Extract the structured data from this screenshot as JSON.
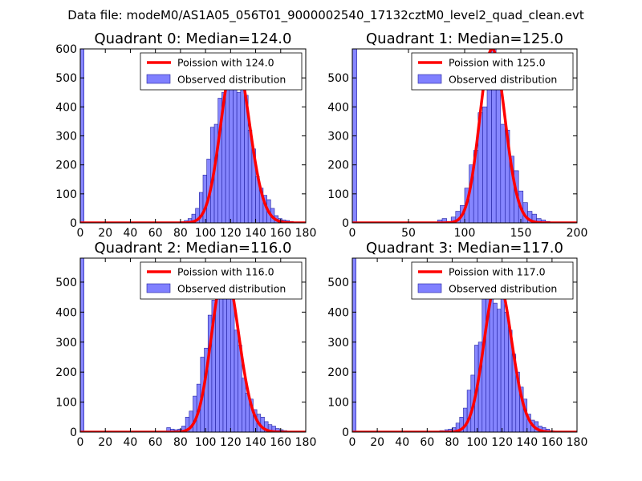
{
  "suptitle": "Data file: modeM0/AS1A05_056T01_9000002540_17132cztM0_level2_quad_clean.evt",
  "colors": {
    "poisson": "#ff0000",
    "hist_fill": "#8080ff",
    "hist_edge": "#2020a0",
    "frame": "#000000"
  },
  "legend": {
    "poisson_prefix": "Poission with",
    "observed": "Observed distribution",
    "placement": "upper right"
  },
  "chart_data": [
    {
      "type": "bar",
      "quadrant": 0,
      "title": "Quadrant 0: Median=124.0",
      "median": 124.0,
      "poisson_label": "Poission with 124.0",
      "xlim": [
        0,
        180
      ],
      "ylim": [
        0,
        600
      ],
      "xticks": [
        0,
        20,
        40,
        60,
        80,
        100,
        120,
        140,
        160,
        180
      ],
      "yticks": [
        0,
        100,
        200,
        300,
        400,
        500,
        600
      ],
      "bin_width": 3,
      "bins": [
        [
          0,
          600
        ],
        [
          74,
          2
        ],
        [
          77,
          3
        ],
        [
          80,
          4
        ],
        [
          83,
          8
        ],
        [
          86,
          15
        ],
        [
          89,
          30
        ],
        [
          92,
          50
        ],
        [
          95,
          105
        ],
        [
          98,
          165
        ],
        [
          101,
          220
        ],
        [
          104,
          330
        ],
        [
          107,
          340
        ],
        [
          110,
          430
        ],
        [
          113,
          450
        ],
        [
          116,
          540
        ],
        [
          119,
          580
        ],
        [
          122,
          560
        ],
        [
          125,
          450
        ],
        [
          128,
          570
        ],
        [
          131,
          440
        ],
        [
          134,
          320
        ],
        [
          137,
          255
        ],
        [
          140,
          160
        ],
        [
          143,
          120
        ],
        [
          146,
          95
        ],
        [
          149,
          80
        ],
        [
          152,
          50
        ],
        [
          155,
          25
        ],
        [
          158,
          15
        ],
        [
          161,
          10
        ],
        [
          164,
          8
        ],
        [
          167,
          5
        ],
        [
          170,
          3
        ]
      ]
    },
    {
      "type": "bar",
      "quadrant": 1,
      "title": "Quadrant 1: Median=125.0",
      "median": 125.0,
      "poisson_label": "Poission with 125.0",
      "xlim": [
        0,
        200
      ],
      "ylim": [
        0,
        600
      ],
      "xticks": [
        0,
        50,
        100,
        150,
        200
      ],
      "yticks": [
        0,
        100,
        200,
        300,
        400,
        500
      ],
      "bin_width": 4,
      "bins": [
        [
          0,
          600
        ],
        [
          76,
          10
        ],
        [
          80,
          15
        ],
        [
          84,
          5
        ],
        [
          88,
          20
        ],
        [
          92,
          40
        ],
        [
          96,
          60
        ],
        [
          100,
          120
        ],
        [
          104,
          200
        ],
        [
          108,
          250
        ],
        [
          112,
          380
        ],
        [
          116,
          400
        ],
        [
          120,
          580
        ],
        [
          124,
          600
        ],
        [
          128,
          550
        ],
        [
          132,
          340
        ],
        [
          136,
          320
        ],
        [
          140,
          230
        ],
        [
          144,
          180
        ],
        [
          148,
          110
        ],
        [
          152,
          70
        ],
        [
          156,
          40
        ],
        [
          160,
          30
        ],
        [
          164,
          15
        ],
        [
          168,
          10
        ],
        [
          172,
          5
        ],
        [
          176,
          3
        ],
        [
          180,
          2
        ],
        [
          184,
          1
        ]
      ]
    },
    {
      "type": "bar",
      "quadrant": 2,
      "title": "Quadrant 2: Median=116.0",
      "median": 116.0,
      "poisson_label": "Poission with 116.0",
      "xlim": [
        0,
        180
      ],
      "ylim": [
        0,
        580
      ],
      "xticks": [
        0,
        20,
        40,
        60,
        80,
        100,
        120,
        140,
        160,
        180
      ],
      "yticks": [
        0,
        100,
        200,
        300,
        400,
        500
      ],
      "bin_width": 3,
      "bins": [
        [
          0,
          580
        ],
        [
          66,
          2
        ],
        [
          69,
          15
        ],
        [
          72,
          10
        ],
        [
          75,
          8
        ],
        [
          78,
          10
        ],
        [
          81,
          20
        ],
        [
          84,
          50
        ],
        [
          87,
          70
        ],
        [
          90,
          120
        ],
        [
          93,
          160
        ],
        [
          96,
          250
        ],
        [
          99,
          280
        ],
        [
          102,
          390
        ],
        [
          105,
          440
        ],
        [
          108,
          470
        ],
        [
          111,
          480
        ],
        [
          114,
          540
        ],
        [
          117,
          510
        ],
        [
          120,
          490
        ],
        [
          123,
          340
        ],
        [
          126,
          290
        ],
        [
          129,
          180
        ],
        [
          132,
          130
        ],
        [
          135,
          110
        ],
        [
          138,
          75
        ],
        [
          141,
          60
        ],
        [
          144,
          50
        ],
        [
          147,
          35
        ],
        [
          150,
          25
        ],
        [
          153,
          20
        ],
        [
          156,
          12
        ],
        [
          159,
          8
        ],
        [
          162,
          5
        ],
        [
          165,
          3
        ],
        [
          168,
          2
        ]
      ]
    },
    {
      "type": "bar",
      "quadrant": 3,
      "title": "Quadrant 3: Median=117.0",
      "median": 117.0,
      "poisson_label": "Poission with 117.0",
      "xlim": [
        0,
        180
      ],
      "ylim": [
        0,
        580
      ],
      "xticks": [
        0,
        20,
        40,
        60,
        80,
        100,
        120,
        140,
        160,
        180
      ],
      "yticks": [
        0,
        100,
        200,
        300,
        400,
        500
      ],
      "bin_width": 3,
      "bins": [
        [
          0,
          580
        ],
        [
          60,
          2
        ],
        [
          65,
          3
        ],
        [
          70,
          5
        ],
        [
          74,
          8
        ],
        [
          77,
          10
        ],
        [
          80,
          15
        ],
        [
          83,
          30
        ],
        [
          86,
          50
        ],
        [
          89,
          80
        ],
        [
          92,
          140
        ],
        [
          95,
          190
        ],
        [
          98,
          290
        ],
        [
          101,
          300
        ],
        [
          104,
          470
        ],
        [
          107,
          490
        ],
        [
          110,
          510
        ],
        [
          113,
          430
        ],
        [
          116,
          410
        ],
        [
          119,
          460
        ],
        [
          122,
          400
        ],
        [
          125,
          340
        ],
        [
          128,
          260
        ],
        [
          131,
          200
        ],
        [
          134,
          150
        ],
        [
          137,
          110
        ],
        [
          140,
          60
        ],
        [
          143,
          40
        ],
        [
          146,
          35
        ],
        [
          149,
          20
        ],
        [
          152,
          15
        ],
        [
          155,
          10
        ],
        [
          158,
          5
        ],
        [
          161,
          3
        ],
        [
          164,
          2
        ]
      ]
    }
  ]
}
